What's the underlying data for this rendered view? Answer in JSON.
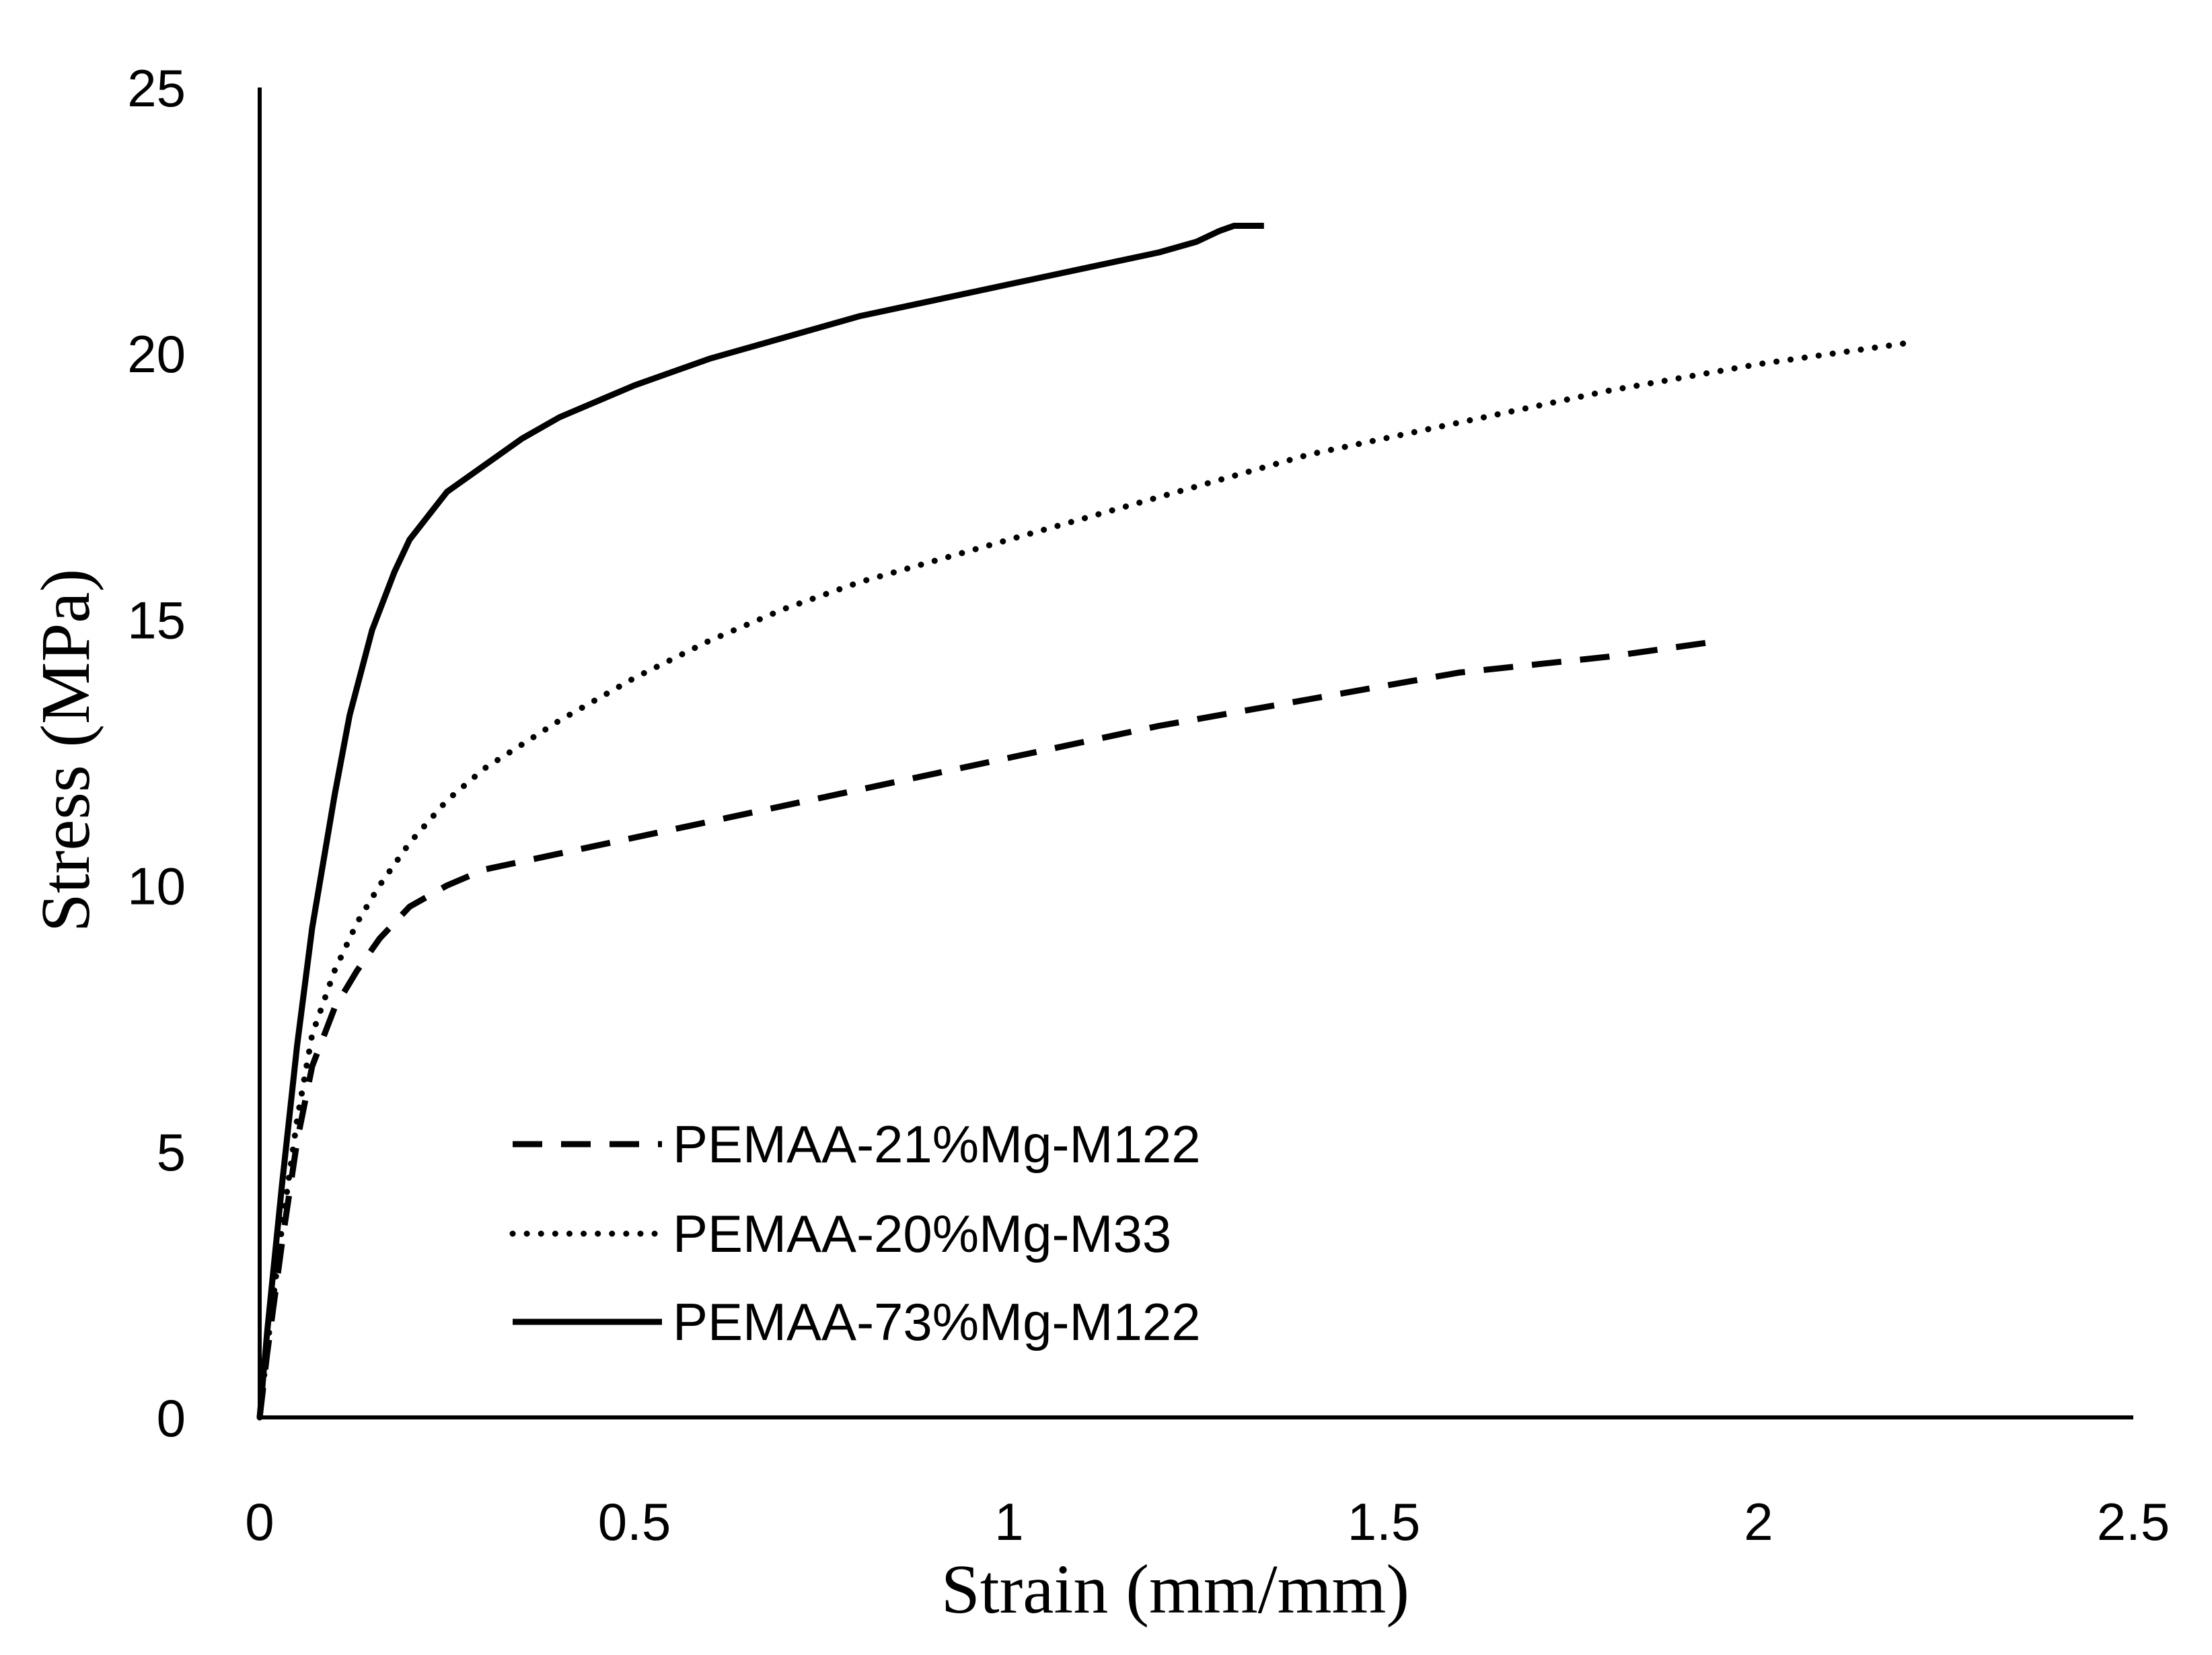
{
  "chart_data": {
    "type": "line",
    "title": "",
    "xlabel": "Strain (mm/mm)",
    "ylabel": "Stress (MPa)",
    "xlim": [
      0,
      2.5
    ],
    "ylim": [
      0,
      25
    ],
    "xticks": [
      0,
      0.5,
      1,
      1.5,
      2,
      2.5
    ],
    "yticks": [
      0,
      5,
      10,
      15,
      20,
      25
    ],
    "xtick_labels": [
      "0",
      "0.5",
      "1",
      "1.5",
      "2",
      "2.5"
    ],
    "ytick_labels": [
      "0",
      "5",
      "10",
      "15",
      "20",
      "25"
    ],
    "grid": false,
    "legend_position": "lower-center",
    "series": [
      {
        "name": "PEMAA-21%Mg-M122",
        "style": "dashed",
        "color": "#000000",
        "x": [
          0,
          0.01,
          0.03,
          0.05,
          0.07,
          0.1,
          0.13,
          0.16,
          0.2,
          0.25,
          0.3,
          0.4,
          0.5,
          0.6,
          0.8,
          1.0,
          1.2,
          1.4,
          1.6,
          1.8,
          1.95
        ],
        "y": [
          0,
          1.2,
          3.3,
          5.2,
          6.6,
          7.7,
          8.4,
          9.0,
          9.6,
          10.0,
          10.3,
          10.6,
          10.9,
          11.2,
          11.8,
          12.4,
          13.0,
          13.5,
          14.0,
          14.3,
          14.6
        ]
      },
      {
        "name": "PEMAA-20%Mg-M33",
        "style": "dotted",
        "color": "#000000",
        "x": [
          0,
          0.01,
          0.03,
          0.05,
          0.07,
          0.1,
          0.13,
          0.16,
          0.2,
          0.25,
          0.3,
          0.4,
          0.5,
          0.6,
          0.7,
          0.8,
          0.9,
          1.0,
          1.2,
          1.4,
          1.6,
          1.8,
          2.0,
          2.1,
          2.2
        ],
        "y": [
          0,
          1.3,
          3.6,
          5.6,
          7.2,
          8.4,
          9.3,
          10.0,
          10.8,
          11.6,
          12.2,
          13.1,
          13.9,
          14.6,
          15.2,
          15.7,
          16.1,
          16.5,
          17.3,
          18.1,
          18.7,
          19.3,
          19.8,
          20.0,
          20.2
        ]
      },
      {
        "name": "PEMAA-73%Mg-M122",
        "style": "solid",
        "color": "#000000",
        "x": [
          0,
          0.01,
          0.03,
          0.05,
          0.07,
          0.1,
          0.12,
          0.15,
          0.18,
          0.2,
          0.25,
          0.3,
          0.35,
          0.4,
          0.5,
          0.6,
          0.7,
          0.8,
          0.9,
          1.0,
          1.1,
          1.2,
          1.25,
          1.28,
          1.3,
          1.34
        ],
        "y": [
          0,
          1.6,
          4.4,
          7.0,
          9.2,
          11.7,
          13.2,
          14.8,
          15.9,
          16.5,
          17.4,
          17.9,
          18.4,
          18.8,
          19.4,
          19.9,
          20.3,
          20.7,
          21.0,
          21.3,
          21.6,
          21.9,
          22.1,
          22.3,
          22.4,
          22.4
        ]
      }
    ]
  }
}
